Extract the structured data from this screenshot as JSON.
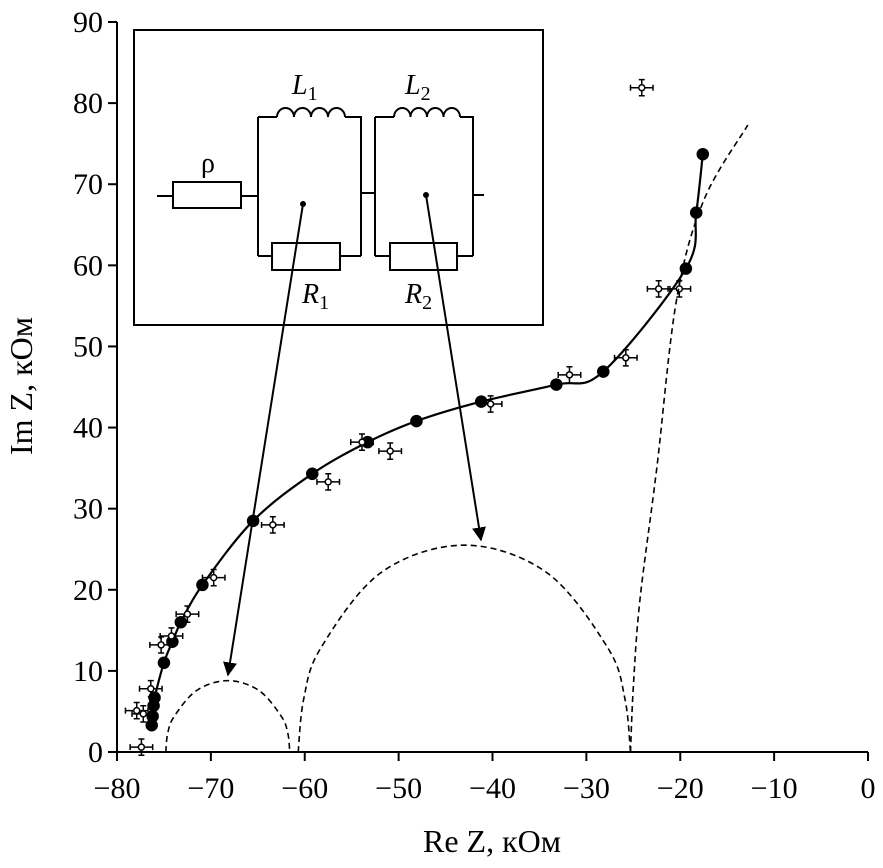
{
  "chart_data": {
    "type": "scatter",
    "xlabel": "Re Z, кОм",
    "ylabel": "Im Z, кОм",
    "xlim": [
      -80,
      0
    ],
    "ylim": [
      0,
      90
    ],
    "xticks": [
      {
        "value": -80,
        "label": "−80"
      },
      {
        "value": -70,
        "label": "−70"
      },
      {
        "value": -60,
        "label": "−60"
      },
      {
        "value": -50,
        "label": "−50"
      },
      {
        "value": -40,
        "label": "−40"
      },
      {
        "value": -30,
        "label": "−30"
      },
      {
        "value": -20,
        "label": "−20"
      },
      {
        "value": -10,
        "label": "−10"
      },
      0
    ],
    "yticks": [
      0,
      10,
      20,
      30,
      40,
      50,
      60,
      70,
      80,
      90
    ],
    "series": [
      {
        "color": "#000000",
        "line": "solid",
        "marker": "filled",
        "x": [
          -76.3,
          -76.2,
          -76.1,
          -76.0,
          -75.0,
          -74.1,
          -73.2,
          -70.9,
          -65.5,
          -59.2,
          -53.3,
          -48.1,
          -41.2,
          -33.2,
          -28.2,
          -19.4,
          -18.3,
          -17.6
        ],
        "y": [
          3.3,
          4.4,
          5.7,
          6.7,
          11.0,
          13.6,
          16.0,
          20.6,
          28.5,
          34.3,
          38.2,
          40.8,
          43.2,
          45.3,
          46.9,
          59.6,
          66.5,
          73.7
        ]
      },
      {
        "color": "#000000",
        "line": "none",
        "marker": "open",
        "xerr": 1.2,
        "yerr": 1.0,
        "x": [
          -77.4,
          -77.9,
          -77.2,
          -76.4,
          -75.3,
          -74.2,
          -72.5,
          -69.7,
          -63.4,
          -57.5,
          -53.9,
          -50.9,
          -40.2,
          -31.8,
          -25.8,
          -22.3,
          -20.1,
          -24.1
        ],
        "y": [
          0.6,
          5.1,
          4.7,
          7.8,
          13.2,
          14.3,
          17.0,
          21.5,
          28.0,
          33.3,
          38.2,
          37.1,
          42.9,
          46.5,
          48.6,
          57.1,
          57.1,
          81.9
        ]
      },
      {
        "color": "#000000",
        "line": "dashed",
        "marker": "none",
        "x": [
          -74.8,
          -74.6,
          -73.9,
          -71.5,
          -68.2,
          -64.9,
          -62.5,
          -61.8,
          -61.6
        ],
        "y": [
          0,
          2.3,
          4.4,
          7.6,
          8.8,
          7.6,
          4.4,
          2.3,
          0
        ]
      },
      {
        "color": "#000000",
        "line": "dashed",
        "marker": "none",
        "x": [
          -60.7,
          -60.1,
          -58.3,
          -51.9,
          -43.0,
          -34.2,
          -27.7,
          -25.9,
          -25.3
        ],
        "y": [
          0,
          6.6,
          12.8,
          22.1,
          25.5,
          22.1,
          12.8,
          6.6,
          0
        ]
      },
      {
        "color": "#000000",
        "line": "dashed",
        "marker": "none",
        "x": [
          -25.3,
          -25.0,
          -24.3,
          -22.5,
          -20.4,
          -17.5,
          -12.8
        ],
        "y": [
          0,
          8,
          18.7,
          35,
          55.7,
          68,
          77.3
        ]
      }
    ]
  },
  "inset": {
    "rho": "ρ",
    "L1": {
      "symbol": "L",
      "sub": "1"
    },
    "L2": {
      "symbol": "L",
      "sub": "2"
    },
    "R1": {
      "symbol": "R",
      "sub": "1"
    },
    "R2": {
      "symbol": "R",
      "sub": "2"
    }
  }
}
